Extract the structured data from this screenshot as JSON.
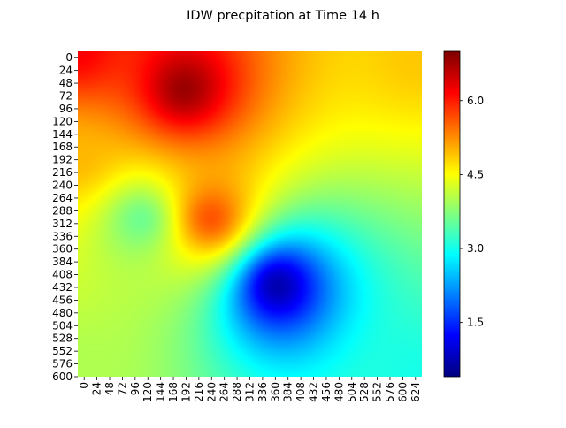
{
  "chart_data": {
    "type": "heatmap",
    "title": "IDW precpitation at Time 14 h",
    "xlabel": "",
    "ylabel": "",
    "x_tick_labels": [
      "0",
      "24",
      "48",
      "72",
      "96",
      "120",
      "144",
      "168",
      "192",
      "216",
      "240",
      "264",
      "288",
      "312",
      "336",
      "360",
      "384",
      "408",
      "432",
      "456",
      "480",
      "504",
      "528",
      "552",
      "576",
      "600",
      "624"
    ],
    "y_tick_labels": [
      "0",
      "24",
      "48",
      "72",
      "96",
      "120",
      "144",
      "168",
      "192",
      "216",
      "240",
      "264",
      "288",
      "312",
      "336",
      "360",
      "384",
      "408",
      "432",
      "456",
      "480",
      "504",
      "528",
      "552",
      "576",
      "600"
    ],
    "x_range": [
      0,
      648
    ],
    "y_range": [
      0,
      612
    ],
    "colormap": "jet",
    "value_range": [
      0.4,
      7.0
    ],
    "colorbar_ticks": [
      "1.5",
      "3.0",
      "4.5",
      "6.0"
    ],
    "idw_power": 2,
    "background_value": 4.0,
    "stations": [
      {
        "x": 200,
        "y": 72,
        "value": 7.0
      },
      {
        "x": 250,
        "y": 315,
        "value": 5.9
      },
      {
        "x": 375,
        "y": 440,
        "value": 0.4
      },
      {
        "x": 120,
        "y": 315,
        "value": 3.4
      },
      {
        "x": 640,
        "y": 10,
        "value": 4.9
      },
      {
        "x": 0,
        "y": 0,
        "value": 6.3
      },
      {
        "x": 0,
        "y": 200,
        "value": 5.0
      },
      {
        "x": 640,
        "y": 610,
        "value": 3.0
      },
      {
        "x": 0,
        "y": 600,
        "value": 4.0
      }
    ]
  }
}
